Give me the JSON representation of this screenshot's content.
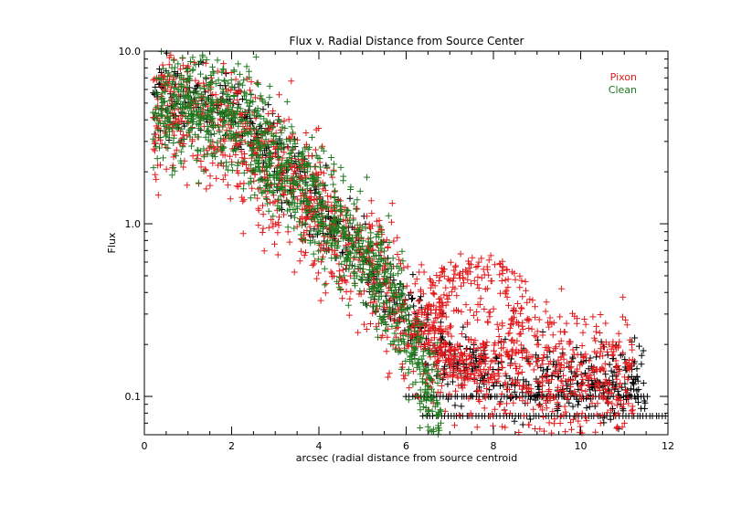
{
  "chart_data": {
    "type": "scatter",
    "title": "Flux v. Radial Distance from Source Center",
    "xlabel": "arcsec (radial distance from source centroid",
    "ylabel": "Flux",
    "xlim": [
      0,
      12
    ],
    "ylim": [
      0.06,
      10.0
    ],
    "yscale": "log",
    "xticks": [
      0,
      2,
      4,
      6,
      8,
      10,
      12
    ],
    "xtick_labels": [
      "0",
      "2",
      "4",
      "6",
      "8",
      "10",
      "12"
    ],
    "yticks": [
      0.1,
      1.0,
      10.0
    ],
    "ytick_labels": [
      "0.1",
      "1.0",
      "10.0"
    ],
    "marker": "plus",
    "legend_position": "top-right",
    "series": [
      {
        "name": "",
        "color": "#000000",
        "trend": [
          [
            0.2,
            5.0
          ],
          [
            1.0,
            5.5
          ],
          [
            2.0,
            4.2
          ],
          [
            3.0,
            2.4
          ],
          [
            4.0,
            1.25
          ],
          [
            5.0,
            0.6
          ],
          [
            6.0,
            0.3
          ],
          [
            7.0,
            0.16
          ],
          [
            8.0,
            0.13
          ],
          [
            10.0,
            0.13
          ],
          [
            11.5,
            0.12
          ]
        ],
        "spread": 0.11,
        "count": 750,
        "floors": [
          {
            "y": 0.1,
            "x_range": [
              6.0,
              11.6
            ]
          },
          {
            "y": 0.077,
            "x_range": [
              6.4,
              12.0
            ]
          }
        ]
      },
      {
        "name": "Pixon",
        "color": "#e31a1c",
        "trend": [
          [
            0.2,
            4.4
          ],
          [
            1.0,
            4.4
          ],
          [
            2.0,
            3.3
          ],
          [
            3.0,
            2.1
          ],
          [
            4.0,
            1.25
          ],
          [
            5.0,
            0.6
          ],
          [
            6.0,
            0.28
          ],
          [
            7.0,
            0.2
          ],
          [
            8.0,
            0.16
          ],
          [
            9.0,
            0.14
          ],
          [
            10.0,
            0.13
          ],
          [
            11.2,
            0.13
          ]
        ],
        "spread": 0.2,
        "count": 1500,
        "loop": {
          "center": [
            7.6,
            0.28
          ],
          "radius_x": 1.4,
          "radius_y_decades": 0.38
        }
      },
      {
        "name": "Clean",
        "color": "#1f7a1f",
        "trend": [
          [
            0.2,
            4.5
          ],
          [
            1.0,
            5.0
          ],
          [
            2.0,
            4.2
          ],
          [
            3.0,
            2.4
          ],
          [
            4.0,
            1.3
          ],
          [
            5.0,
            0.65
          ],
          [
            5.8,
            0.35
          ],
          [
            6.3,
            0.15
          ],
          [
            6.8,
            0.08
          ]
        ],
        "spread": 0.16,
        "count": 1200
      }
    ]
  }
}
